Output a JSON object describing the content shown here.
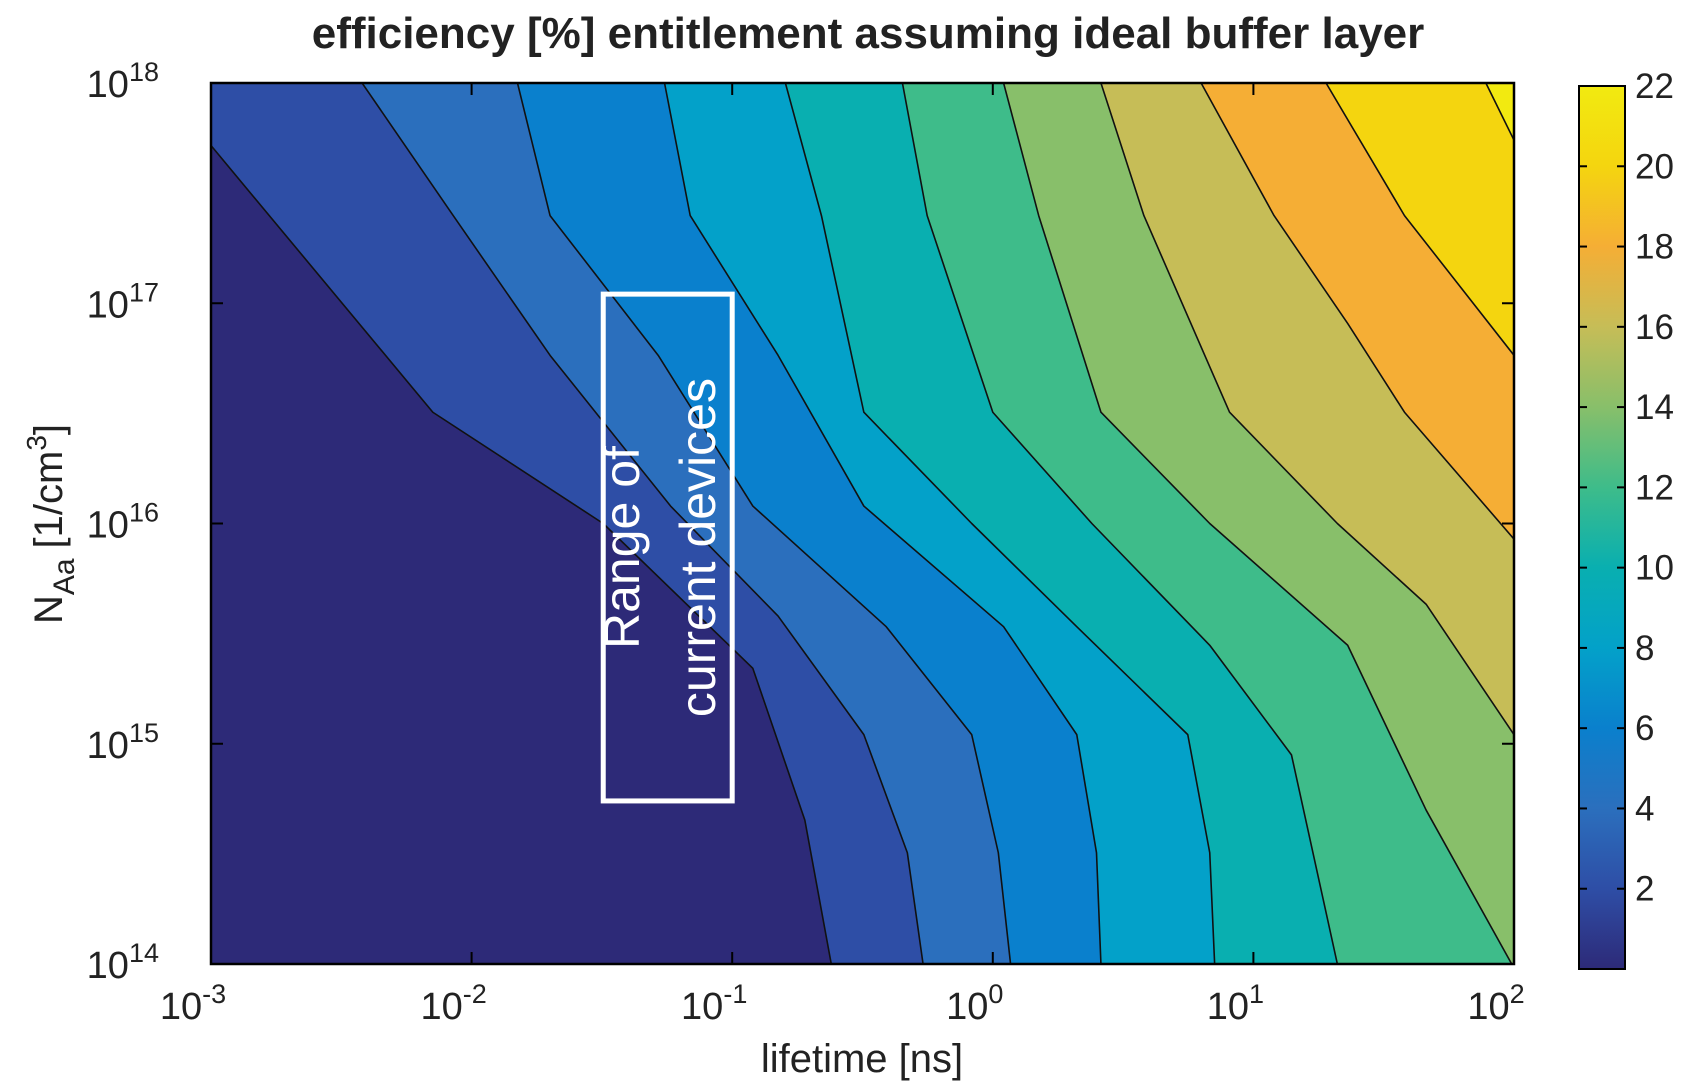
{
  "chart_data": {
    "type": "contour",
    "title": "efficiency [%] entitlement assuming ideal buffer layer",
    "xlabel": "lifetime [ns]",
    "ylabel": {
      "base": "N",
      "sub": "Aa",
      "unit": "[1/cm",
      "sup": "3",
      "close": "]"
    },
    "xscale": "log",
    "yscale": "log",
    "xlim": [
      0.001,
      100
    ],
    "ylim": [
      100000000000000.0,
      1e+18
    ],
    "xticks": [
      {
        "value": 0.001,
        "label": "10",
        "exponent": "-3"
      },
      {
        "value": 0.01,
        "label": "10",
        "exponent": "-2"
      },
      {
        "value": 0.1,
        "label": "10",
        "exponent": "-1"
      },
      {
        "value": 1,
        "label": "10",
        "exponent": "0"
      },
      {
        "value": 10,
        "label": "10",
        "exponent": "1"
      },
      {
        "value": 100,
        "label": "10",
        "exponent": "2"
      }
    ],
    "yticks": [
      {
        "value": 100000000000000.0,
        "label": "10",
        "exponent": "14"
      },
      {
        "value": 1000000000000000.0,
        "label": "10",
        "exponent": "15"
      },
      {
        "value": 1e+16,
        "label": "10",
        "exponent": "16"
      },
      {
        "value": 1e+17,
        "label": "10",
        "exponent": "17"
      },
      {
        "value": 1e+18,
        "label": "10",
        "exponent": "18"
      }
    ],
    "clim": [
      0,
      22
    ],
    "cticks": [
      2,
      4,
      6,
      8,
      10,
      12,
      14,
      16,
      18,
      20,
      22
    ],
    "colors": [
      "#2d2a78",
      "#2e4ea6",
      "#2b6fbd",
      "#0a80cd",
      "#03a1c9",
      "#09afb0",
      "#3ebc8a",
      "#88bf6a",
      "#c6bd57",
      "#f5ae35",
      "#f4d50f",
      "#f2ea10"
    ],
    "line_color": "#111111",
    "series": [
      {
        "level": 2,
        "x": [
          0.001,
          0.0071,
          0.032,
          0.12,
          0.19,
          0.24
        ],
        "y": [
          5.2e+17,
          3.2e+16,
          1e+16,
          2200000000000000.0,
          450000000000000.0,
          100000000000000.0
        ]
      },
      {
        "level": 4,
        "x": [
          0.0038,
          0.0085,
          0.02,
          0.058,
          0.15,
          0.32,
          0.47,
          0.54
        ],
        "y": [
          1e+18,
          2.5e+17,
          5.8e+16,
          1.2e+16,
          3800000000000000.0,
          1100000000000000.0,
          320000000000000.0,
          100000000000000.0
        ]
      },
      {
        "level": 6,
        "x": [
          0.015,
          0.02,
          0.052,
          0.12,
          0.39,
          0.83,
          1.05,
          1.17
        ],
        "y": [
          1e+18,
          2.5e+17,
          5.8e+16,
          1.2e+16,
          3400000000000000.0,
          1100000000000000.0,
          320000000000000.0,
          100000000000000.0
        ]
      },
      {
        "level": 8,
        "x": [
          0.055,
          0.069,
          0.15,
          0.32,
          1.1,
          2.1,
          2.5,
          2.6
        ],
        "y": [
          1e+18,
          2.5e+17,
          5.8e+16,
          1.2e+16,
          3400000000000000.0,
          1100000000000000.0,
          320000000000000.0,
          100000000000000.0
        ]
      },
      {
        "level": 10,
        "x": [
          0.16,
          0.22,
          0.32,
          0.83,
          2.1,
          5.6,
          6.8,
          7.1
        ],
        "y": [
          1e+18,
          2.5e+17,
          3.2e+16,
          1e+16,
          3400000000000000.0,
          1100000000000000.0,
          320000000000000.0,
          100000000000000.0
        ]
      },
      {
        "level": 12,
        "x": [
          0.45,
          0.56,
          1.0,
          2.4,
          6.8,
          14,
          21
        ],
        "y": [
          1e+18,
          2.5e+17,
          3.2e+16,
          1e+16,
          2800000000000000.0,
          890000000000000.0,
          100000000000000.0
        ]
      },
      {
        "level": 14,
        "x": [
          1.1,
          1.5,
          2.6,
          6.8,
          23,
          46,
          98
        ],
        "y": [
          1e+18,
          2.5e+17,
          3.2e+16,
          1e+16,
          2800000000000000.0,
          500000000000000.0,
          100000000000000.0
        ]
      },
      {
        "level": 16,
        "x": [
          2.6,
          3.8,
          8.1,
          21,
          46,
          100
        ],
        "y": [
          1e+18,
          2.5e+17,
          3.2e+16,
          1e+16,
          4300000000000000.0,
          1100000000000000.0
        ]
      },
      {
        "level": 18,
        "x": [
          6.3,
          12,
          23,
          38,
          100
        ],
        "y": [
          1e+18,
          2.5e+17,
          8.1e+16,
          3.2e+16,
          8500000000000000.0
        ]
      },
      {
        "level": 20,
        "x": [
          19,
          38,
          100
        ],
        "y": [
          1e+18,
          2.5e+17,
          5.8e+16
        ]
      },
      {
        "level": 22,
        "x": [
          78,
          100
        ],
        "y": [
          1e+18,
          5.5e+17
        ]
      }
    ],
    "annotation": {
      "lines": [
        "Range of",
        "current devices"
      ],
      "x": [
        0.032,
        0.1
      ],
      "y": [
        550000000000000.0,
        1.1e+17
      ],
      "color": "#ffffff"
    }
  }
}
